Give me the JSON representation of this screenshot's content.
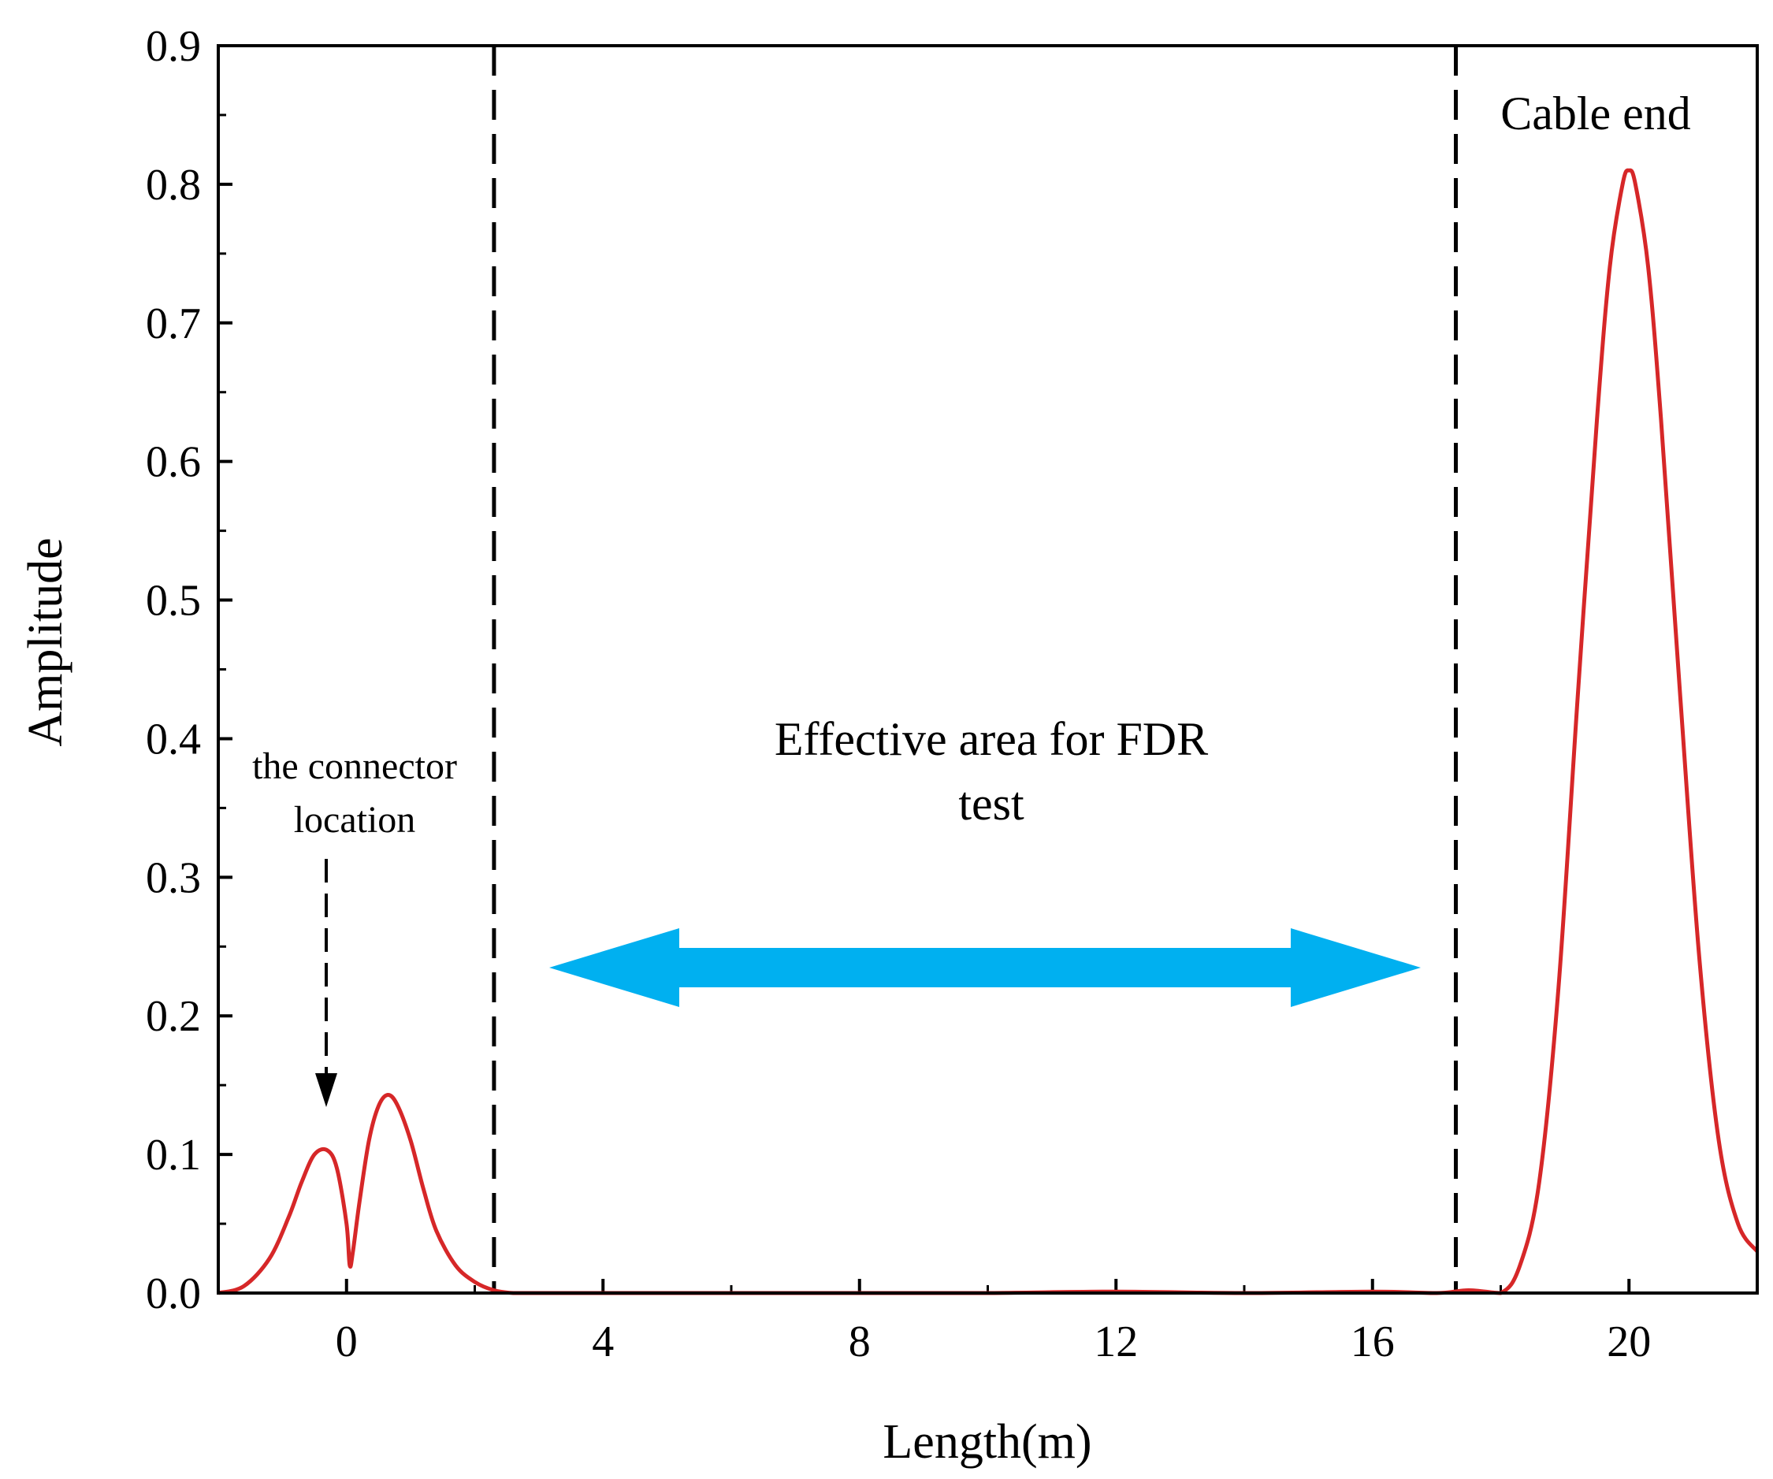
{
  "chart_data": {
    "type": "line",
    "title": "",
    "xlabel": "Length(m)",
    "ylabel": "Amplitude",
    "xlim": [
      -2,
      22
    ],
    "ylim": [
      0,
      0.9
    ],
    "x_ticks": [
      0,
      4,
      8,
      12,
      16,
      20
    ],
    "x_tick_labels": [
      "0",
      "4",
      "8",
      "12",
      "16",
      "20"
    ],
    "y_ticks": [
      0.0,
      0.1,
      0.2,
      0.3,
      0.4,
      0.5,
      0.6,
      0.7,
      0.8,
      0.9
    ],
    "y_tick_labels": [
      "0.0",
      "0.1",
      "0.2",
      "0.3",
      "0.4",
      "0.5",
      "0.6",
      "0.7",
      "0.8",
      "0.9"
    ],
    "grid": false,
    "series": [
      {
        "color": "#d62728",
        "x": [
          -2.0,
          -1.6,
          -1.2,
          -0.9,
          -0.7,
          -0.5,
          -0.3,
          -0.15,
          0.0,
          0.05,
          0.1,
          0.2,
          0.35,
          0.5,
          0.65,
          0.8,
          1.0,
          1.2,
          1.4,
          1.7,
          2.0,
          2.3,
          2.6,
          3.0,
          4.0,
          6.0,
          8.0,
          10.0,
          12.0,
          14.0,
          16.0,
          17.0,
          17.5,
          18.0,
          18.3,
          18.6,
          18.9,
          19.2,
          19.5,
          19.7,
          19.9,
          20.0,
          20.1,
          20.3,
          20.5,
          20.8,
          21.1,
          21.4,
          21.7,
          22.0
        ],
        "y": [
          0.0,
          0.005,
          0.025,
          0.055,
          0.08,
          0.1,
          0.103,
          0.09,
          0.05,
          0.02,
          0.03,
          0.065,
          0.11,
          0.135,
          0.143,
          0.135,
          0.11,
          0.075,
          0.045,
          0.02,
          0.008,
          0.002,
          0.0,
          0.0,
          0.0,
          0.0,
          0.0,
          0.0,
          0.001,
          0.0,
          0.001,
          0.0,
          0.002,
          0.0,
          0.02,
          0.08,
          0.22,
          0.43,
          0.63,
          0.74,
          0.8,
          0.81,
          0.8,
          0.74,
          0.63,
          0.43,
          0.24,
          0.11,
          0.05,
          0.03
        ]
      }
    ],
    "vlines": [
      2.3,
      17.3
    ],
    "annotations": {
      "connector_line1": "the connector",
      "connector_line2": "location",
      "effective_line1": "Effective area for FDR",
      "effective_line2": "test",
      "cable_end": "Cable end"
    },
    "arrow_color": "#00b0f0",
    "vline_color": "#000000",
    "line_color": "#d62728"
  }
}
